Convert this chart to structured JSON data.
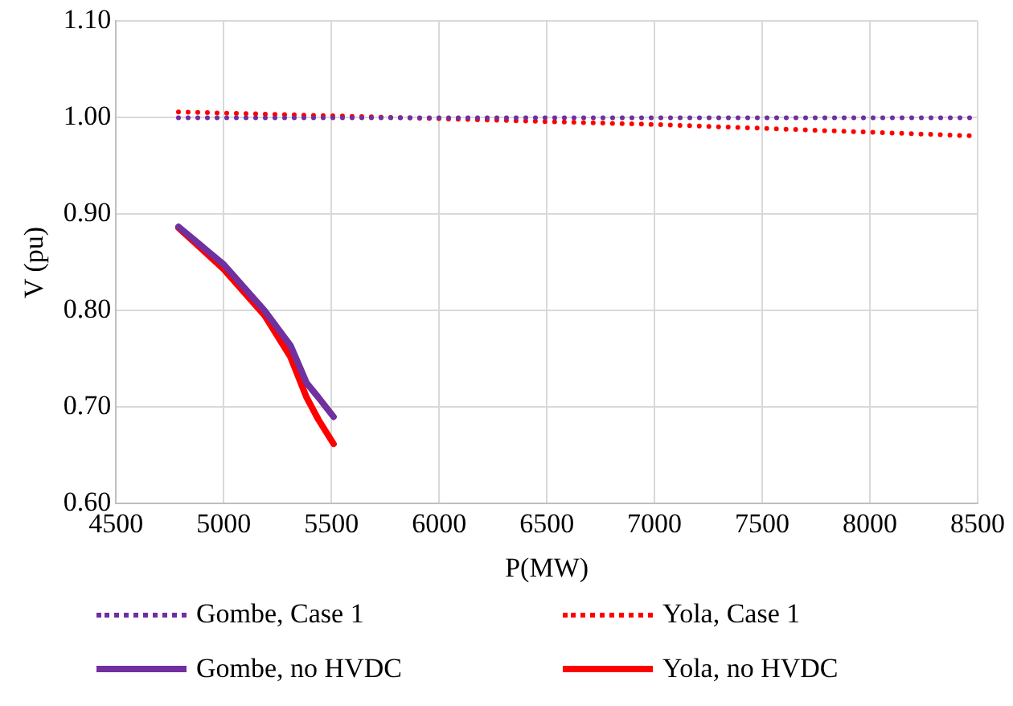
{
  "chart_data": {
    "type": "line",
    "xlabel": "P(MW)",
    "ylabel": "V (pu)",
    "xlim": [
      4500,
      8500
    ],
    "xticks": [
      4500,
      5000,
      5500,
      6000,
      6500,
      7000,
      7500,
      8000,
      8500
    ],
    "ylim": [
      0.6,
      1.1
    ],
    "yticks": [
      {
        "value": 0.6,
        "label": "0.60"
      },
      {
        "value": 0.7,
        "label": "0.70"
      },
      {
        "value": 0.8,
        "label": "0.80"
      },
      {
        "value": 0.9,
        "label": "0.90"
      },
      {
        "value": 1.0,
        "label": "1.00"
      },
      {
        "value": 1.1,
        "label": "1.10"
      }
    ],
    "grid": true,
    "legend": "bottom",
    "marker": "none",
    "series": [
      {
        "name": "Gombe, Case 1",
        "color": "#7030a0",
        "line_style": "dotted",
        "x": [
          4790,
          5500,
          6000,
          6500,
          7000,
          7500,
          8000,
          8500
        ],
        "values": [
          1.0,
          1.0,
          1.0,
          1.0,
          1.0,
          1.0,
          1.0,
          1.0
        ]
      },
      {
        "name": "Yola, Case 1",
        "color": "#ff0000",
        "line_style": "dotted",
        "x": [
          4790,
          5500,
          6000,
          6500,
          7000,
          7500,
          8000,
          8500
        ],
        "values": [
          1.006,
          1.002,
          0.999,
          0.996,
          0.993,
          0.989,
          0.985,
          0.981
        ]
      },
      {
        "name": "Gombe, no HVDC",
        "color": "#7030a0",
        "line_style": "solid",
        "x": [
          4790,
          5000,
          5190,
          5310,
          5385,
          5440,
          5510
        ],
        "values": [
          0.887,
          0.848,
          0.8,
          0.764,
          0.725,
          0.71,
          0.69
        ]
      },
      {
        "name": "Yola, no HVDC",
        "color": "#ff0000",
        "line_style": "solid",
        "x": [
          4790,
          5000,
          5190,
          5310,
          5385,
          5440,
          5510
        ],
        "values": [
          0.886,
          0.843,
          0.795,
          0.752,
          0.71,
          0.687,
          0.662
        ]
      }
    ]
  }
}
